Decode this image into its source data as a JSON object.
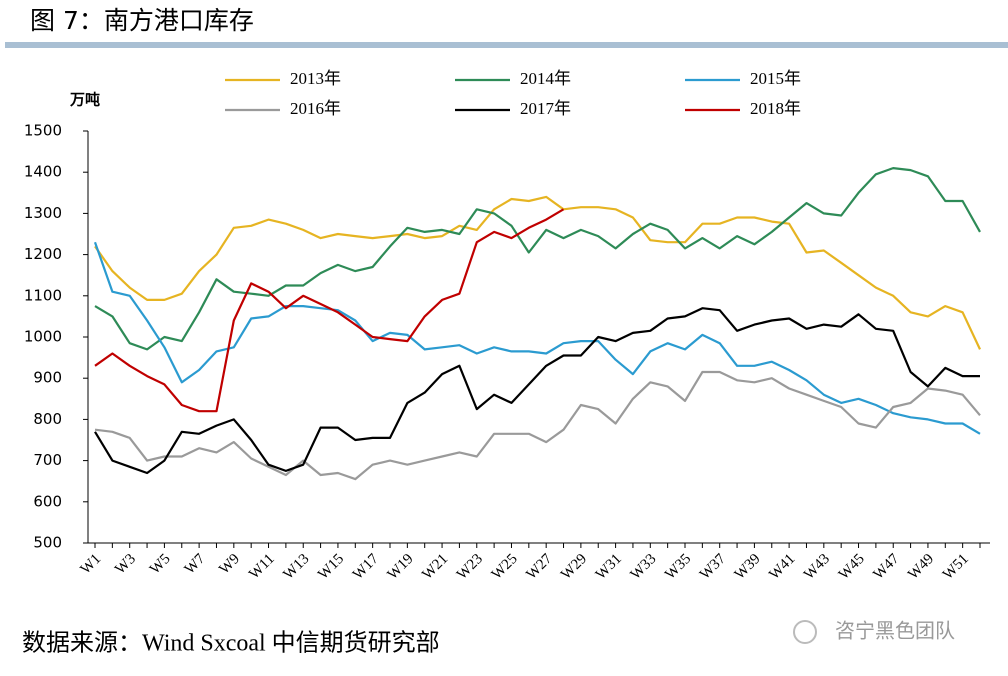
{
  "chart_data": {
    "type": "line",
    "title": "图 7：南方港口库存",
    "y_label": "万吨",
    "source": "数据来源：Wind Sxcoal 中信期货研究部",
    "watermark": "咨宁黑色团队",
    "categories": [
      "W1",
      null,
      "W3",
      null,
      "W5",
      null,
      "W7",
      null,
      "W9",
      null,
      "W11",
      null,
      "W13",
      null,
      "W15",
      null,
      "W17",
      null,
      "W19",
      null,
      "W21",
      null,
      "W23",
      null,
      "W25",
      null,
      "W27",
      null,
      "W29",
      null,
      "W31",
      null,
      "W33",
      null,
      "W35",
      null,
      "W37",
      null,
      "W39",
      null,
      "W41",
      null,
      "W43",
      null,
      "W45",
      null,
      "W47",
      null,
      "W49",
      null,
      "W51",
      null
    ],
    "ylim": [
      500,
      1500
    ],
    "yticks": [
      500,
      600,
      700,
      800,
      900,
      1000,
      1100,
      1200,
      1300,
      1400,
      1500
    ],
    "series": [
      {
        "name": "2013年",
        "color": "#e6b422",
        "values": [
          1220,
          1160,
          1120,
          1090,
          1090,
          1105,
          1160,
          1200,
          1265,
          1270,
          1285,
          1275,
          1260,
          1240,
          1250,
          1245,
          1240,
          1245,
          1250,
          1240,
          1245,
          1270,
          1260,
          1310,
          1335,
          1330,
          1340,
          1310,
          1315,
          1315,
          1310,
          1290,
          1235,
          1230,
          1230,
          1275,
          1275,
          1290,
          1290,
          1280,
          1275,
          1205,
          1210,
          1180,
          1150,
          1120,
          1100,
          1060,
          1050,
          1075,
          1060,
          970
        ]
      },
      {
        "name": "2014年",
        "color": "#2e8b57",
        "values": [
          1075,
          1050,
          985,
          970,
          1000,
          990,
          1060,
          1140,
          1110,
          1105,
          1100,
          1125,
          1125,
          1155,
          1175,
          1160,
          1170,
          1220,
          1265,
          1255,
          1260,
          1250,
          1310,
          1300,
          1270,
          1205,
          1260,
          1240,
          1260,
          1245,
          1215,
          1250,
          1275,
          1260,
          1215,
          1240,
          1215,
          1245,
          1225,
          1255,
          1290,
          1325,
          1300,
          1295,
          1350,
          1395,
          1410,
          1405,
          1390,
          1330,
          1330,
          1255
        ]
      },
      {
        "name": "2015年",
        "color": "#2b9bd0",
        "values": [
          1230,
          1110,
          1100,
          1040,
          975,
          890,
          920,
          965,
          975,
          1045,
          1050,
          1075,
          1075,
          1070,
          1065,
          1040,
          990,
          1010,
          1005,
          970,
          975,
          980,
          960,
          975,
          965,
          965,
          960,
          985,
          990,
          990,
          945,
          910,
          965,
          985,
          970,
          1005,
          985,
          930,
          930,
          940,
          920,
          895,
          860,
          840,
          850,
          835,
          815,
          805,
          800,
          790,
          790,
          765
        ]
      },
      {
        "name": "2016年",
        "color": "#9a9a9a",
        "values": [
          775,
          770,
          755,
          700,
          710,
          710,
          730,
          720,
          745,
          705,
          685,
          665,
          700,
          665,
          670,
          655,
          690,
          700,
          690,
          700,
          710,
          720,
          710,
          765,
          765,
          765,
          745,
          775,
          835,
          825,
          790,
          850,
          890,
          880,
          845,
          915,
          915,
          895,
          890,
          900,
          875,
          860,
          845,
          830,
          790,
          780,
          830,
          840,
          875,
          870,
          860,
          810
        ]
      },
      {
        "name": "2017年",
        "color": "#000000",
        "values": [
          770,
          700,
          685,
          670,
          700,
          770,
          765,
          785,
          800,
          750,
          690,
          675,
          690,
          780,
          780,
          750,
          755,
          755,
          840,
          865,
          910,
          930,
          825,
          860,
          840,
          885,
          930,
          955,
          955,
          1000,
          990,
          1010,
          1015,
          1045,
          1050,
          1070,
          1065,
          1015,
          1030,
          1040,
          1045,
          1020,
          1030,
          1025,
          1055,
          1020,
          1015,
          915,
          880,
          925,
          905,
          905
        ]
      },
      {
        "name": "2018年",
        "color": "#c00000",
        "values": [
          930,
          960,
          930,
          905,
          885,
          835,
          820,
          820,
          1040,
          1130,
          1110,
          1070,
          1100,
          1080,
          1060,
          1030,
          1000,
          995,
          990,
          1050,
          1090,
          1105,
          1230,
          1255,
          1240,
          1265,
          1285,
          1310,
          null,
          null,
          null,
          null,
          null,
          null,
          null,
          null,
          null,
          null,
          null,
          null,
          null,
          null,
          null,
          null,
          null,
          null,
          null,
          null,
          null,
          null,
          null,
          null
        ]
      }
    ]
  }
}
